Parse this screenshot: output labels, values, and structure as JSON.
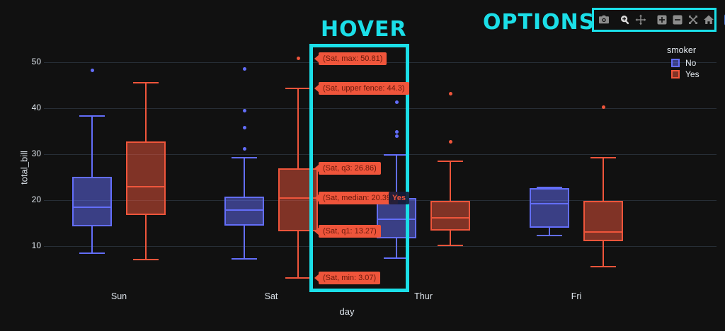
{
  "annotations": {
    "hover_label": "HOVER",
    "options_label": "OPTIONS"
  },
  "colors": {
    "accent_cyan": "#1bdfe8",
    "background": "#111111",
    "grid": "#272e36",
    "text": "#e6ecf2",
    "no_trace": "#636efa",
    "yes_trace": "#ef553b",
    "hover_bg": "#ef553b",
    "hover_text": "#6b1a0c",
    "modebar_icon": "#8c8c8c",
    "modebar_icon_active": "#d9d9d9",
    "plotly_logo_blue": "#4c73c9"
  },
  "legend": {
    "title": "smoker",
    "items": [
      {
        "label": "No",
        "color": "#636efa"
      },
      {
        "label": "Yes",
        "color": "#ef553b"
      }
    ]
  },
  "modebar": {
    "icons": [
      "camera",
      "zoom",
      "pan",
      "zoom-in",
      "zoom-out",
      "autoscale",
      "reset-axes",
      "plotly-logo"
    ],
    "active_icon": "zoom"
  },
  "hover_tooltips": [
    {
      "text": "(Sat, max: 50.81)",
      "value": 50.81
    },
    {
      "text": "(Sat, upper fence: 44.3)",
      "value": 44.3
    },
    {
      "text": "(Sat, q3: 26.86)",
      "value": 26.86
    },
    {
      "text": "(Sat, median: 20.39)",
      "value": 20.39,
      "trace_tag": "Yes"
    },
    {
      "text": "(Sat, q1: 13.27)",
      "value": 13.27
    },
    {
      "text": "(Sat, min: 3.07)",
      "value": 3.07
    }
  ],
  "chart_data": {
    "type": "box",
    "title": "",
    "xlabel": "day",
    "ylabel": "total_bill",
    "categories": [
      "Sun",
      "Sat",
      "Thur",
      "Fri"
    ],
    "y_ticks": [
      10,
      20,
      30,
      40,
      50
    ],
    "ylim": [
      0,
      55
    ],
    "legend_position": "top-right",
    "grid": true,
    "series": [
      {
        "name": "No",
        "color": "#636efa",
        "boxes": [
          {
            "category": "Sun",
            "min": 8.5,
            "q1": 14.3,
            "median": 18.4,
            "q3": 25.1,
            "max": 38.3,
            "outliers": [
              48.2
            ]
          },
          {
            "category": "Sat",
            "min": 7.2,
            "q1": 14.5,
            "median": 17.8,
            "q3": 20.7,
            "max": 29.2,
            "outliers": [
              31.2,
              35.7,
              39.4,
              48.5
            ]
          },
          {
            "category": "Thur",
            "min": 7.4,
            "q1": 11.7,
            "median": 15.9,
            "q3": 20.5,
            "max": 29.8,
            "outliers": [
              34.0,
              34.9,
              41.3
            ]
          },
          {
            "category": "Fri",
            "min": 12.3,
            "q1": 14.0,
            "median": 19.2,
            "q3": 22.6,
            "max": 22.8,
            "outliers": []
          }
        ]
      },
      {
        "name": "Yes",
        "color": "#ef553b",
        "boxes": [
          {
            "category": "Sun",
            "min": 7.1,
            "q1": 16.8,
            "median": 23.0,
            "q3": 32.8,
            "max": 45.5,
            "outliers": []
          },
          {
            "category": "Sat",
            "min": 3.07,
            "q1": 13.27,
            "median": 20.39,
            "q3": 26.86,
            "max": 44.3,
            "outliers": [
              50.81
            ]
          },
          {
            "category": "Thur",
            "min": 10.2,
            "q1": 13.4,
            "median": 16.1,
            "q3": 19.8,
            "max": 28.5,
            "outliers": [
              32.7,
              43.1
            ]
          },
          {
            "category": "Fri",
            "min": 5.6,
            "q1": 11.1,
            "median": 13.1,
            "q3": 19.8,
            "max": 29.2,
            "outliers": [
              40.3
            ]
          }
        ]
      }
    ]
  }
}
